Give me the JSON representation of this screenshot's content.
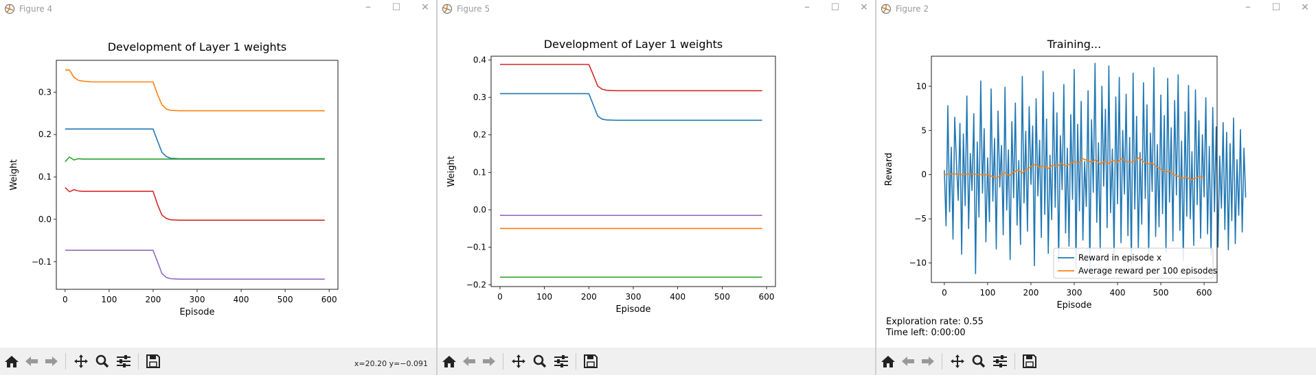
{
  "windows": [
    {
      "title": "Figure 4",
      "coords": "x=20.20 y=−0.091",
      "chart_data": {
        "type": "line",
        "title": "Development of Layer 1 weights",
        "xlabel": "Episode",
        "ylabel": "Weight",
        "xlim": [
          -20,
          620
        ],
        "ylim": [
          -0.165,
          0.375
        ],
        "xticks": [
          "0",
          "100",
          "200",
          "300",
          "400",
          "500",
          "600"
        ],
        "yticks": [
          "−0.1",
          "0.0",
          "0.1",
          "0.2",
          "0.3"
        ],
        "ytick_values": [
          -0.1,
          0.0,
          0.1,
          0.2,
          0.3
        ],
        "xtick_values": [
          0,
          100,
          200,
          300,
          400,
          500,
          600
        ],
        "series": [
          {
            "color": "#1f77b4",
            "x": [
              0,
              200,
              210,
              220,
              230,
              240,
              260,
              590
            ],
            "y": [
              0.213,
              0.213,
              0.185,
              0.158,
              0.148,
              0.144,
              0.143,
              0.143
            ]
          },
          {
            "color": "#ff7f0e",
            "x": [
              0,
              10,
              20,
              30,
              40,
              60,
              200,
              210,
              220,
              230,
              240,
              260,
              590
            ],
            "y": [
              0.352,
              0.352,
              0.335,
              0.328,
              0.326,
              0.324,
              0.324,
              0.295,
              0.27,
              0.26,
              0.257,
              0.256,
              0.256
            ]
          },
          {
            "color": "#2ca02c",
            "x": [
              0,
              10,
              20,
              30,
              40,
              590
            ],
            "y": [
              0.136,
              0.147,
              0.14,
              0.143,
              0.142,
              0.142
            ]
          },
          {
            "color": "#d62728",
            "x": [
              0,
              10,
              20,
              30,
              40,
              200,
              210,
              220,
              230,
              240,
              260,
              590
            ],
            "y": [
              0.075,
              0.065,
              0.07,
              0.067,
              0.066,
              0.066,
              0.035,
              0.01,
              0.002,
              -0.001,
              -0.002,
              -0.002
            ]
          },
          {
            "color": "#9467bd",
            "x": [
              0,
              200,
              210,
              220,
              230,
              240,
              260,
              590
            ],
            "y": [
              -0.073,
              -0.073,
              -0.1,
              -0.128,
              -0.137,
              -0.14,
              -0.141,
              -0.141
            ]
          }
        ]
      }
    },
    {
      "title": "Figure 5",
      "chart_data": {
        "type": "line",
        "title": "Development of Layer 1 weights",
        "xlabel": "Episode",
        "ylabel": "Weight",
        "xlim": [
          -20,
          620
        ],
        "ylim": [
          -0.205,
          0.41
        ],
        "xticks": [
          "0",
          "100",
          "200",
          "300",
          "400",
          "500",
          "600"
        ],
        "yticks": [
          "−0.2",
          "−0.1",
          "0.0",
          "0.1",
          "0.2",
          "0.3",
          "0.4"
        ],
        "ytick_values": [
          -0.2,
          -0.1,
          0.0,
          0.1,
          0.2,
          0.3,
          0.4
        ],
        "xtick_values": [
          0,
          100,
          200,
          300,
          400,
          500,
          600
        ],
        "series": [
          {
            "color": "#d62728",
            "x": [
              0,
              200,
              210,
              220,
              230,
              240,
              260,
              590
            ],
            "y": [
              0.388,
              0.388,
              0.36,
              0.33,
              0.322,
              0.319,
              0.318,
              0.318
            ]
          },
          {
            "color": "#1f77b4",
            "x": [
              0,
              200,
              210,
              220,
              230,
              240,
              260,
              590
            ],
            "y": [
              0.31,
              0.31,
              0.28,
              0.25,
              0.242,
              0.24,
              0.239,
              0.239
            ]
          },
          {
            "color": "#9467bd",
            "x": [
              0,
              590
            ],
            "y": [
              -0.015,
              -0.015
            ]
          },
          {
            "color": "#ff7f0e",
            "x": [
              0,
              590
            ],
            "y": [
              -0.05,
              -0.05
            ]
          },
          {
            "color": "#2ca02c",
            "x": [
              0,
              590
            ],
            "y": [
              -0.18,
              -0.18
            ]
          }
        ]
      }
    },
    {
      "title": "Figure 2",
      "exploration": "Exploration rate: 0.55",
      "time_left": "Time left: 0:00:00",
      "chart_data": {
        "type": "line",
        "title": "Training...",
        "xlabel": "Episode",
        "ylabel": "Reward",
        "xlim": [
          -30,
          630
        ],
        "ylim": [
          -12.2,
          13.4
        ],
        "xticks": [
          "0",
          "100",
          "200",
          "300",
          "400",
          "500",
          "600"
        ],
        "yticks": [
          "−10",
          "−5",
          "0",
          "5",
          "10"
        ],
        "ytick_values": [
          -10,
          -5,
          0,
          5,
          10
        ],
        "xtick_values": [
          0,
          100,
          200,
          300,
          400,
          500,
          600
        ],
        "legend": {
          "position": "lower-right",
          "entries": [
            "Reward in episode x",
            "Average reward per 100 episodes"
          ]
        },
        "series": [
          {
            "name": "Reward in episode x",
            "color": "#1f77b4",
            "x_start": 0,
            "x_step": 4,
            "y": [
              0.5,
              -5.8,
              7.8,
              -4.2,
              3.1,
              -7.3,
              6.5,
              1.2,
              -2.9,
              5.8,
              -9.0,
              4.6,
              -3.5,
              8.9,
              -6.1,
              2.4,
              -1.8,
              6.9,
              -11.2,
              3.7,
              -4.8,
              10.6,
              -2.1,
              5.2,
              -7.6,
              1.9,
              -5.3,
              9.7,
              -3.0,
              4.1,
              -8.4,
              7.2,
              -1.4,
              3.3,
              -6.8,
              9.9,
              -4.0,
              2.8,
              -9.6,
              6.0,
              -2.6,
              8.1,
              -5.7,
              1.6,
              -7.9,
              11.1,
              -3.2,
              4.9,
              -6.4,
              7.7,
              -1.1,
              5.5,
              -10.3,
              8.6,
              -2.4,
              3.9,
              -7.1,
              11.7,
              -4.5,
              6.3,
              -8.9,
              2.2,
              -5.1,
              9.3,
              -3.7,
              7.0,
              -9.9,
              4.4,
              -1.7,
              10.2,
              -6.6,
              3.0,
              -8.1,
              6.8,
              -2.8,
              11.9,
              -10.6,
              5.7,
              -4.1,
              8.3,
              -7.4,
              1.5,
              -3.6,
              9.5,
              -10.8,
              6.2,
              -2.0,
              12.6,
              -5.4,
              3.6,
              -8.6,
              10.0,
              -1.3,
              7.4,
              -6.0,
              12.3,
              -4.3,
              2.9,
              -9.2,
              8.8,
              -3.3,
              11.0,
              -7.7,
              5.0,
              -2.2,
              9.1,
              -6.9,
              4.2,
              -10.1,
              11.5,
              -3.9,
              6.6,
              -8.3,
              2.5,
              -5.6,
              10.4,
              -2.7,
              7.9,
              -9.4,
              4.7,
              -1.9,
              12.1,
              -7.0,
              3.4,
              -5.9,
              9.0,
              -4.4,
              6.7,
              -8.8,
              10.9,
              -3.1,
              5.3,
              -7.5,
              8.4,
              -2.3,
              11.3,
              -6.3,
              3.8,
              -9.7,
              7.1,
              -4.7,
              10.1,
              -5.0,
              2.6,
              -8.0,
              9.6,
              -3.4,
              6.1,
              -7.2,
              4.5,
              -2.5,
              8.7,
              -6.7,
              3.2,
              -9.1,
              7.6,
              -4.2,
              5.4,
              -8.2,
              2.1,
              -3.8,
              5.9,
              -6.2,
              4.8,
              -8.5,
              3.5,
              -5.2,
              6.4,
              -7.8,
              1.7,
              -4.6,
              5.1,
              -6.5,
              3.0,
              -2.6
            ]
          },
          {
            "name": "Average reward per 100 episodes",
            "color": "#ff7f0e",
            "x": [
              0,
              20,
              40,
              60,
              80,
              100,
              110,
              120,
              130,
              140,
              150,
              160,
              170,
              180,
              190,
              200,
              210,
              220,
              230,
              240,
              250,
              260,
              270,
              280,
              290,
              300,
              310,
              320,
              330,
              340,
              350,
              360,
              370,
              380,
              390,
              400,
              410,
              420,
              430,
              440,
              450,
              460,
              470,
              480,
              490,
              500,
              510,
              520,
              530,
              540,
              550,
              560,
              570,
              580,
              590,
              600
            ],
            "y": [
              0.0,
              0.1,
              0.0,
              0.1,
              0.0,
              0.0,
              -0.2,
              -0.4,
              -0.1,
              0.2,
              -0.1,
              0.3,
              0.5,
              0.2,
              0.6,
              0.9,
              1.2,
              0.8,
              1.0,
              0.7,
              1.1,
              0.9,
              1.3,
              1.0,
              1.2,
              1.5,
              1.3,
              1.8,
              1.6,
              1.4,
              1.7,
              1.2,
              1.5,
              1.3,
              1.6,
              1.4,
              1.8,
              1.5,
              1.4,
              1.6,
              1.9,
              1.5,
              1.2,
              1.3,
              0.9,
              0.6,
              0.3,
              0.4,
              0.0,
              -0.2,
              -0.4,
              -0.3,
              -0.6,
              -0.4,
              -0.2,
              -0.3
            ]
          }
        ]
      }
    }
  ]
}
